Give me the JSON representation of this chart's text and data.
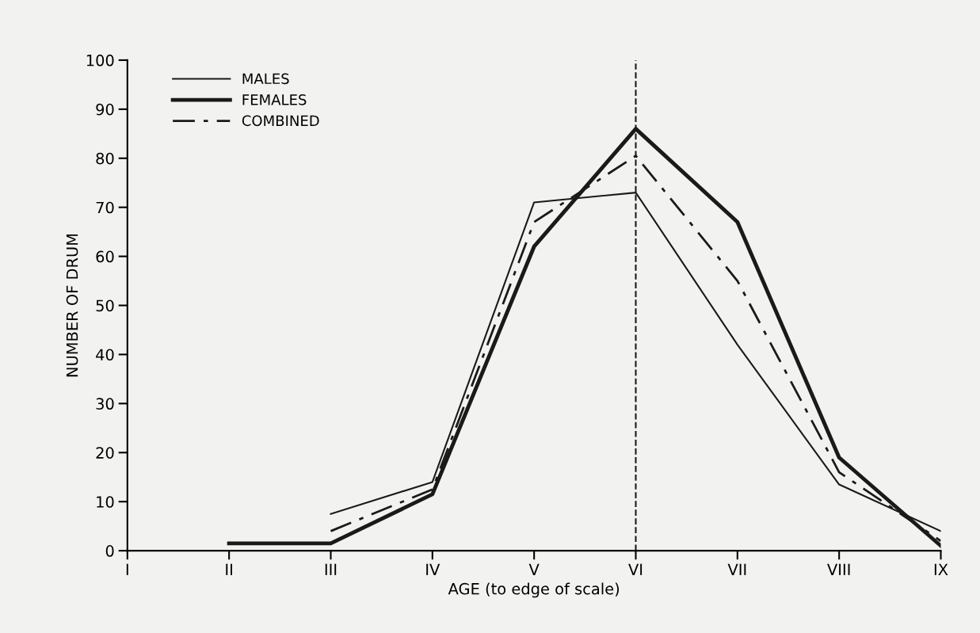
{
  "chart_data": {
    "type": "line",
    "xlabel": "AGE (to edge of scale)",
    "ylabel": "NUMBER OF DRUM",
    "categories": [
      "I",
      "II",
      "III",
      "IV",
      "V",
      "VI",
      "VII",
      "VIII",
      "IX"
    ],
    "series": [
      {
        "name": "MALES",
        "color": "#1a1a1a",
        "line_style": "solid",
        "values": [
          null,
          null,
          7.5,
          14,
          71,
          73,
          42,
          13.5,
          4
        ]
      },
      {
        "name": "FEMALES",
        "color": "#1a1a1a",
        "line_style": "solid",
        "values": [
          null,
          1.5,
          1.5,
          11.5,
          62,
          86,
          67,
          19,
          1
        ]
      },
      {
        "name": "COMBINED",
        "color": "#1a1a1a",
        "line_style": "dashdot",
        "values": [
          null,
          null,
          4,
          12.5,
          67,
          80.5,
          55,
          16,
          2
        ]
      }
    ],
    "ylim": [
      0,
      100
    ],
    "yticks": [
      0,
      10,
      20,
      30,
      40,
      50,
      60,
      70,
      80,
      90,
      100
    ],
    "ref_lines": [
      {
        "axis": "x",
        "value": "VI",
        "color": "#1a1a1a",
        "line_style": "dashed"
      }
    ],
    "grid": false,
    "legend": "top left",
    "marker": "none"
  }
}
